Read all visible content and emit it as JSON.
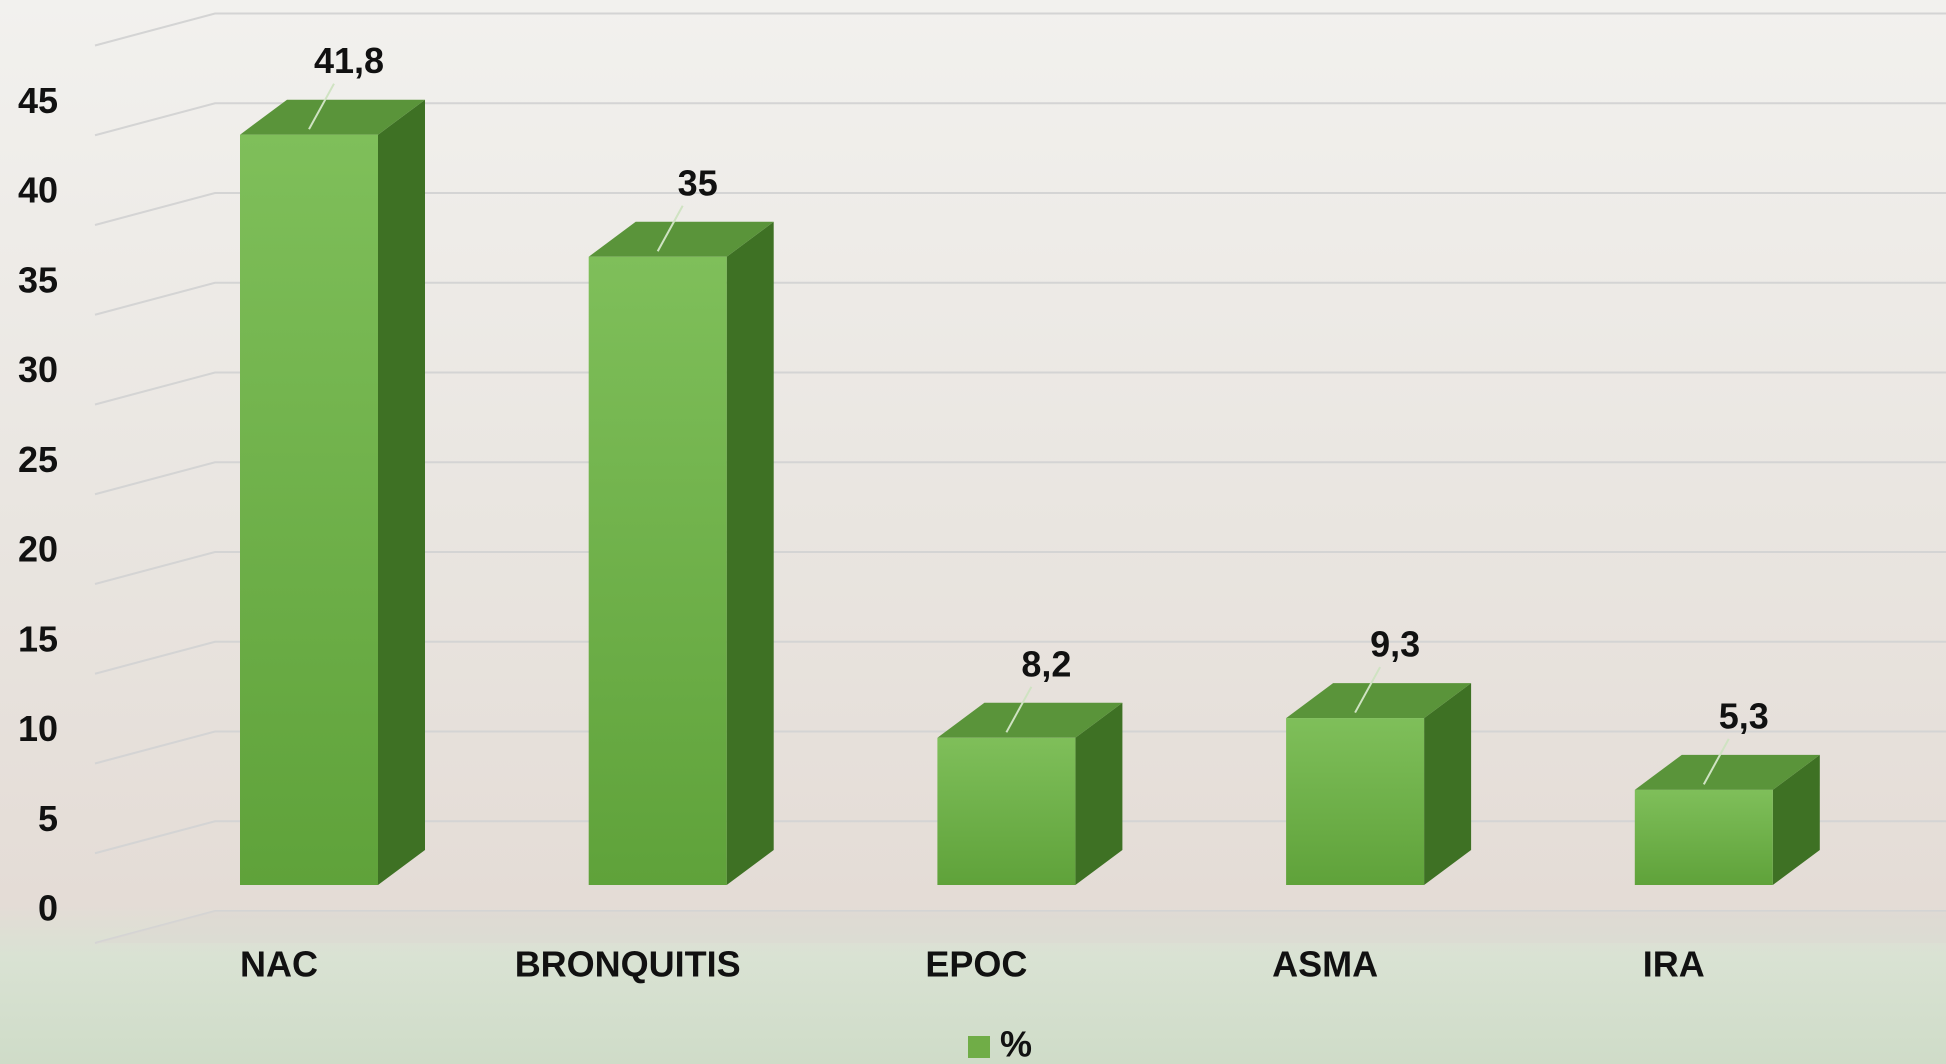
{
  "chart_data": {
    "type": "bar3d",
    "categories": [
      "NAC",
      "BRONQUITIS",
      "EPOC",
      "ASMA",
      "IRA"
    ],
    "series": [
      {
        "name": "%",
        "color": "#70ad47",
        "values": [
          41.8,
          35,
          8.2,
          9.3,
          5.3
        ],
        "value_labels": [
          "41,8",
          "35",
          "8,2",
          "9,3",
          "5,3"
        ]
      }
    ],
    "ylim": [
      0,
      50
    ],
    "yticks": [
      0,
      5,
      10,
      15,
      20,
      25,
      30,
      35,
      40,
      45
    ],
    "grid": true,
    "legend": "bottom"
  }
}
